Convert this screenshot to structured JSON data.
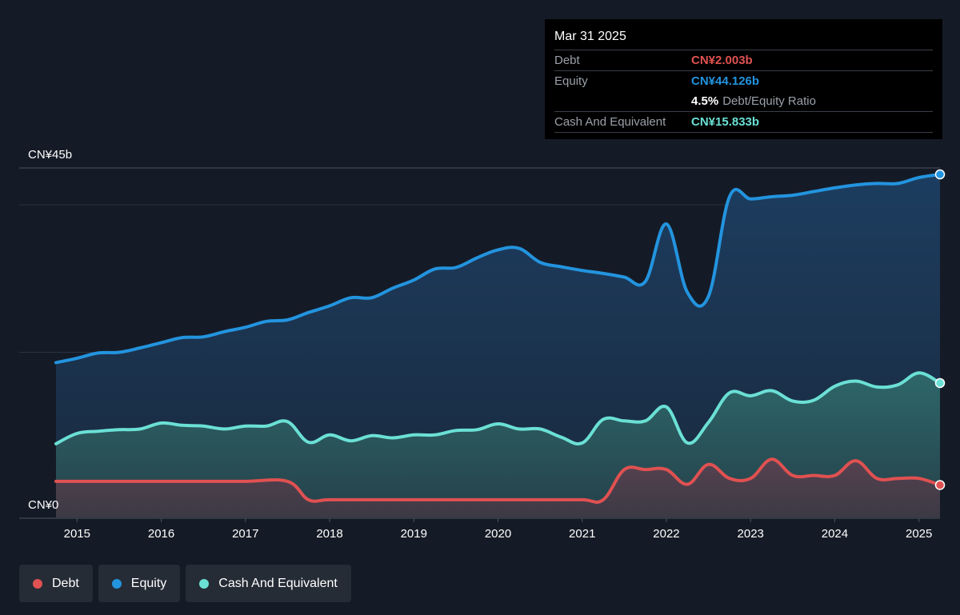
{
  "tooltip": {
    "date": "Mar 31 2025",
    "rows": [
      {
        "label": "Debt",
        "value": "CN¥2.003b"
      },
      {
        "label": "Equity",
        "value": "CN¥44.126b"
      },
      {
        "ratio_value": "4.5%",
        "ratio_label": "Debt/Equity Ratio"
      },
      {
        "label": "Cash And Equivalent",
        "value": "CN¥15.833b"
      }
    ]
  },
  "legend": [
    {
      "label": "Debt",
      "color": "#e05151"
    },
    {
      "label": "Equity",
      "color": "#2394df"
    },
    {
      "label": "Cash And Equivalent",
      "color": "#6be0d5"
    }
  ],
  "chart_data": {
    "type": "area",
    "y_axis_labels": {
      "top": "CN¥45b",
      "bottom": "CN¥0"
    },
    "ylim": [
      -2.5,
      45
    ],
    "xlim": [
      2014.75,
      2025.25
    ],
    "x_ticks": [
      2015,
      2016,
      2017,
      2018,
      2019,
      2020,
      2021,
      2022,
      2023,
      2024,
      2025
    ],
    "x_tick_labels": [
      "2015",
      "2016",
      "2017",
      "2018",
      "2019",
      "2020",
      "2021",
      "2022",
      "2023",
      "2024",
      "2025"
    ],
    "grid": true,
    "colors": {
      "Debt": "#e05151",
      "Equity": "#2394df",
      "Cash And Equivalent": "#6be0d5"
    },
    "series": [
      {
        "name": "Equity",
        "points": [
          [
            2014.75,
            18.6
          ],
          [
            2015,
            19.2
          ],
          [
            2015.25,
            19.9
          ],
          [
            2015.5,
            20.0
          ],
          [
            2015.75,
            20.6
          ],
          [
            2016,
            21.3
          ],
          [
            2016.25,
            22.0
          ],
          [
            2016.5,
            22.1
          ],
          [
            2016.75,
            22.8
          ],
          [
            2017,
            23.4
          ],
          [
            2017.25,
            24.2
          ],
          [
            2017.5,
            24.4
          ],
          [
            2017.75,
            25.4
          ],
          [
            2018,
            26.3
          ],
          [
            2018.25,
            27.4
          ],
          [
            2018.5,
            27.4
          ],
          [
            2018.75,
            28.7
          ],
          [
            2019,
            29.8
          ],
          [
            2019.25,
            31.3
          ],
          [
            2019.5,
            31.5
          ],
          [
            2019.75,
            32.8
          ],
          [
            2020,
            33.9
          ],
          [
            2020.25,
            34.1
          ],
          [
            2020.5,
            32.2
          ],
          [
            2020.75,
            31.6
          ],
          [
            2021,
            31.1
          ],
          [
            2021.25,
            30.7
          ],
          [
            2021.5,
            30.2
          ],
          [
            2021.75,
            29.6
          ],
          [
            2022,
            37.4
          ],
          [
            2022.25,
            28.1
          ],
          [
            2022.5,
            27.6
          ],
          [
            2022.75,
            41.1
          ],
          [
            2023,
            40.8
          ],
          [
            2023.25,
            41.1
          ],
          [
            2023.5,
            41.3
          ],
          [
            2023.75,
            41.8
          ],
          [
            2024,
            42.3
          ],
          [
            2024.25,
            42.7
          ],
          [
            2024.5,
            42.9
          ],
          [
            2024.75,
            42.9
          ],
          [
            2025,
            43.7
          ],
          [
            2025.25,
            44.126
          ]
        ]
      },
      {
        "name": "Cash And Equivalent",
        "points": [
          [
            2014.75,
            7.6
          ],
          [
            2015,
            9.0
          ],
          [
            2015.25,
            9.3
          ],
          [
            2015.5,
            9.5
          ],
          [
            2015.75,
            9.6
          ],
          [
            2016,
            10.4
          ],
          [
            2016.25,
            10.1
          ],
          [
            2016.5,
            10.0
          ],
          [
            2016.75,
            9.6
          ],
          [
            2017,
            10.0
          ],
          [
            2017.25,
            10.0
          ],
          [
            2017.5,
            10.6
          ],
          [
            2017.75,
            7.8
          ],
          [
            2018,
            8.8
          ],
          [
            2018.25,
            8.0
          ],
          [
            2018.5,
            8.7
          ],
          [
            2018.75,
            8.4
          ],
          [
            2019,
            8.8
          ],
          [
            2019.25,
            8.8
          ],
          [
            2019.5,
            9.4
          ],
          [
            2019.75,
            9.5
          ],
          [
            2020,
            10.3
          ],
          [
            2020.25,
            9.6
          ],
          [
            2020.5,
            9.6
          ],
          [
            2020.75,
            8.5
          ],
          [
            2021,
            7.7
          ],
          [
            2021.25,
            10.9
          ],
          [
            2021.5,
            10.7
          ],
          [
            2021.75,
            10.7
          ],
          [
            2022,
            12.6
          ],
          [
            2022.25,
            7.7
          ],
          [
            2022.5,
            10.5
          ],
          [
            2022.75,
            14.5
          ],
          [
            2023,
            14.1
          ],
          [
            2023.25,
            14.8
          ],
          [
            2023.5,
            13.4
          ],
          [
            2023.75,
            13.5
          ],
          [
            2024,
            15.4
          ],
          [
            2024.25,
            16.1
          ],
          [
            2024.5,
            15.3
          ],
          [
            2024.75,
            15.6
          ],
          [
            2025,
            17.2
          ],
          [
            2025.25,
            15.833
          ]
        ]
      },
      {
        "name": "Debt",
        "points": [
          [
            2014.75,
            2.5
          ],
          [
            2015,
            2.5
          ],
          [
            2015.5,
            2.5
          ],
          [
            2016,
            2.5
          ],
          [
            2016.5,
            2.5
          ],
          [
            2017,
            2.5
          ],
          [
            2017.5,
            2.5
          ],
          [
            2017.75,
            0
          ],
          [
            2018,
            0
          ],
          [
            2018.5,
            0
          ],
          [
            2019,
            0
          ],
          [
            2019.5,
            0
          ],
          [
            2020,
            0
          ],
          [
            2020.5,
            0
          ],
          [
            2021,
            0
          ],
          [
            2021.25,
            0
          ],
          [
            2021.5,
            4.1
          ],
          [
            2021.75,
            4.1
          ],
          [
            2022,
            4.1
          ],
          [
            2022.25,
            2.1
          ],
          [
            2022.5,
            4.8
          ],
          [
            2022.75,
            2.9
          ],
          [
            2023,
            2.9
          ],
          [
            2023.25,
            5.5
          ],
          [
            2023.5,
            3.3
          ],
          [
            2023.75,
            3.3
          ],
          [
            2024,
            3.3
          ],
          [
            2024.25,
            5.3
          ],
          [
            2024.5,
            2.9
          ],
          [
            2024.75,
            2.9
          ],
          [
            2025,
            2.9
          ],
          [
            2025.25,
            2.003
          ]
        ]
      }
    ]
  }
}
